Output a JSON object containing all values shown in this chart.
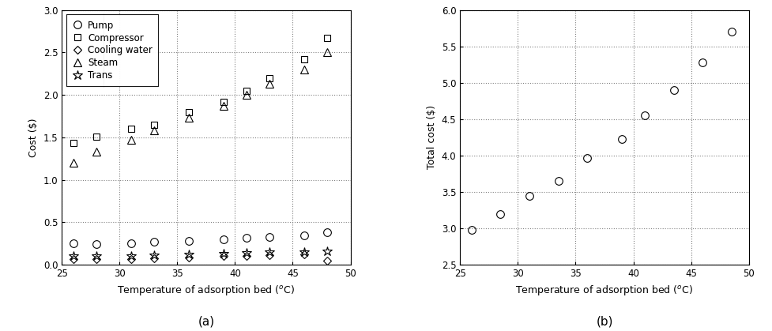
{
  "temp_a": [
    26,
    28,
    31,
    33,
    36,
    39,
    41,
    43,
    46,
    48
  ],
  "pump": [
    0.25,
    0.24,
    0.25,
    0.27,
    0.28,
    0.3,
    0.32,
    0.33,
    0.35,
    0.38
  ],
  "compressor": [
    1.43,
    1.51,
    1.6,
    1.65,
    1.8,
    1.92,
    2.05,
    2.2,
    2.42,
    2.67
  ],
  "cooling_water": [
    0.07,
    0.07,
    0.07,
    0.08,
    0.09,
    0.1,
    0.1,
    0.11,
    0.12,
    0.05
  ],
  "steam": [
    1.2,
    1.33,
    1.47,
    1.58,
    1.73,
    1.87,
    2.0,
    2.13,
    2.3,
    2.5
  ],
  "trans": [
    0.1,
    0.1,
    0.1,
    0.11,
    0.12,
    0.13,
    0.14,
    0.15,
    0.15,
    0.16
  ],
  "temp_b": [
    26,
    28.5,
    31,
    33.5,
    36,
    39,
    41,
    43.5,
    46,
    48.5
  ],
  "total": [
    2.98,
    3.2,
    3.45,
    3.65,
    3.97,
    4.23,
    4.55,
    4.9,
    5.28,
    5.7
  ],
  "xlabel": "Temperature of adsorption bed ($^{o}$C)",
  "ylabel_a": "Cost ($)",
  "ylabel_b": "Total cost ($)",
  "label_a": "(a)",
  "label_b": "(b)",
  "legend_labels": [
    "Pump",
    "Compressor",
    "Cooling water",
    "Steam",
    "Trans"
  ],
  "markers": [
    "o",
    "s",
    "D",
    "^",
    "*"
  ],
  "xlim_a": [
    25,
    50
  ],
  "ylim_a": [
    0,
    3.0
  ],
  "xlim_b": [
    25,
    50
  ],
  "ylim_b": [
    2.5,
    6.0
  ],
  "xticks_a": [
    25,
    30,
    35,
    40,
    45,
    50
  ],
  "yticks_a": [
    0.0,
    0.5,
    1.0,
    1.5,
    2.0,
    2.5,
    3.0
  ],
  "xticks_b": [
    25,
    30,
    35,
    40,
    45,
    50
  ],
  "yticks_b": [
    2.5,
    3.0,
    3.5,
    4.0,
    4.5,
    5.0,
    5.5,
    6.0
  ]
}
